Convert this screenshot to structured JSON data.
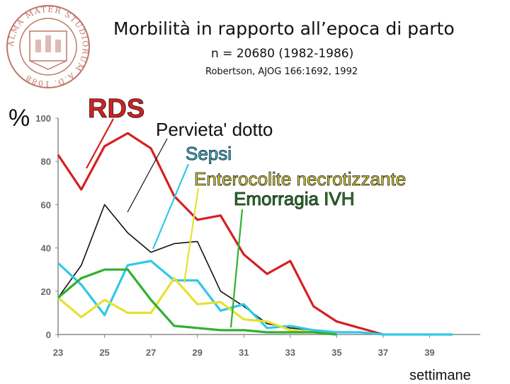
{
  "slide": {
    "title": "Morbilità in rapporto all’epoca di parto",
    "subtitle": "n = 20680 (1982-1986)",
    "citation": "Robertson, AJOG 166:1692, 1992",
    "logo_text": "ALMA MATER STUDIORUM A.D. 1088",
    "logo_color": "#c2766a"
  },
  "chart_data": {
    "type": "line",
    "ylabel": "%",
    "xlabel": "settimane",
    "xlim": [
      23,
      41
    ],
    "ylim": [
      0,
      100
    ],
    "x_ticks": [
      23,
      25,
      27,
      29,
      31,
      33,
      35,
      37,
      39
    ],
    "y_ticks": [
      0,
      20,
      40,
      60,
      80,
      100
    ],
    "grid": false,
    "series": [
      {
        "name": "RDS",
        "color": "#d42020",
        "label_color": "#d42020",
        "points": [
          [
            23,
            83
          ],
          [
            24,
            67
          ],
          [
            25,
            87
          ],
          [
            26,
            93
          ],
          [
            27,
            86
          ],
          [
            28,
            64
          ],
          [
            29,
            53
          ],
          [
            30,
            55
          ],
          [
            31,
            37
          ],
          [
            32,
            28
          ],
          [
            33,
            34
          ],
          [
            34,
            13
          ],
          [
            35,
            6
          ],
          [
            36,
            3
          ],
          [
            37,
            0
          ]
        ]
      },
      {
        "name": "Pervieta' dotto",
        "color": "#111111",
        "label_color": "#111111",
        "points": [
          [
            23,
            17
          ],
          [
            24,
            32
          ],
          [
            25,
            60
          ],
          [
            26,
            47
          ],
          [
            27,
            38
          ],
          [
            28,
            42
          ],
          [
            29,
            43
          ],
          [
            30,
            20
          ],
          [
            31,
            13
          ],
          [
            32,
            5
          ],
          [
            33,
            3
          ],
          [
            34,
            2
          ],
          [
            35,
            1
          ],
          [
            36,
            1
          ],
          [
            37,
            0
          ]
        ]
      },
      {
        "name": "Sepsi",
        "color": "#30c8e6",
        "label_color": "#30c8e6",
        "points": [
          [
            23,
            33
          ],
          [
            24,
            23
          ],
          [
            25,
            9
          ],
          [
            26,
            32
          ],
          [
            27,
            34
          ],
          [
            28,
            25
          ],
          [
            29,
            25
          ],
          [
            30,
            11
          ],
          [
            31,
            14
          ],
          [
            32,
            3
          ],
          [
            33,
            4
          ],
          [
            34,
            2
          ],
          [
            35,
            1
          ],
          [
            36,
            1
          ],
          [
            37,
            0
          ],
          [
            38,
            0
          ],
          [
            39,
            0
          ],
          [
            40,
            0
          ]
        ]
      },
      {
        "name": "Enterocolite necrotizzante",
        "color": "#e8e030",
        "label_color": "#e8e030",
        "points": [
          [
            23,
            17
          ],
          [
            24,
            8
          ],
          [
            25,
            16
          ],
          [
            26,
            10
          ],
          [
            27,
            10
          ],
          [
            28,
            26
          ],
          [
            29,
            14
          ],
          [
            30,
            15
          ],
          [
            31,
            7
          ],
          [
            32,
            6
          ],
          [
            33,
            2
          ],
          [
            34,
            1
          ],
          [
            35,
            0
          ]
        ]
      },
      {
        "name": "Emorragia IVH",
        "color": "#30b030",
        "label_color": "#1f8c1f",
        "points": [
          [
            23,
            17
          ],
          [
            24,
            26
          ],
          [
            25,
            30
          ],
          [
            26,
            30
          ],
          [
            27,
            16
          ],
          [
            28,
            4
          ],
          [
            29,
            3
          ],
          [
            30,
            2
          ],
          [
            31,
            2
          ],
          [
            32,
            1
          ],
          [
            33,
            1
          ],
          [
            34,
            1
          ],
          [
            35,
            0
          ]
        ]
      }
    ]
  }
}
